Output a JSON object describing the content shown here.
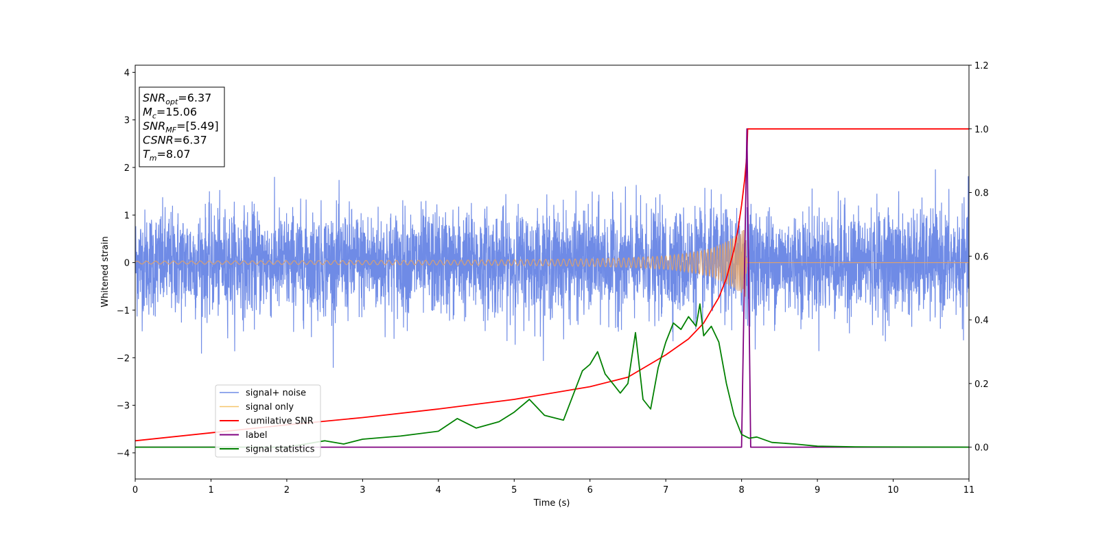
{
  "chart_data": {
    "type": "line",
    "title": "",
    "xlabel": "Time (s)",
    "ylabel": "Whitened strain",
    "y2label": "",
    "xlim": [
      0,
      11
    ],
    "ylim": [
      -4.55,
      4.15
    ],
    "y2lim": [
      -0.1,
      1.2
    ],
    "x_ticks": [
      0,
      1,
      2,
      3,
      4,
      5,
      6,
      7,
      8,
      9,
      10,
      11
    ],
    "y_ticks": [
      -4,
      -3,
      -2,
      -1,
      0,
      1,
      2,
      3,
      4
    ],
    "y2_ticks": [
      0.0,
      0.2,
      0.4,
      0.6,
      0.8,
      1.0,
      1.2
    ],
    "x_tick_labels": [
      "0",
      "1",
      "2",
      "3",
      "4",
      "5",
      "6",
      "7",
      "8",
      "9",
      "10",
      "11"
    ],
    "y_tick_labels": [
      "−4",
      "−3",
      "−2",
      "−1",
      "0",
      "1",
      "2",
      "3",
      "4"
    ],
    "y2_tick_labels": [
      "0.0",
      "0.2",
      "0.4",
      "0.6",
      "0.8",
      "1.0",
      "1.2"
    ],
    "grid": false,
    "legend_position": "lower-left",
    "annotation": {
      "lines": [
        {
          "symbol": "SNR",
          "sub": "opt",
          "value": "=6.37"
        },
        {
          "symbol": "M",
          "sub": "c",
          "value": "=15.06"
        },
        {
          "symbol": "SNR",
          "sub": "MF",
          "value": "=[5.49]"
        },
        {
          "symbol": "CSNR",
          "sub": "",
          "value": "=6.37"
        },
        {
          "symbol": "T",
          "sub": "m",
          "value": "=8.07"
        }
      ]
    },
    "series": [
      {
        "name": "signal+ noise",
        "axis": "left",
        "color": "#6f8be6",
        "style": "noise",
        "noise_std": 0.55,
        "noise_max_abs": 2.5
      },
      {
        "name": "signal only",
        "axis": "left",
        "color": "#f5c56a",
        "style": "chirp",
        "envelope": {
          "x": [
            0,
            1,
            2,
            3,
            4,
            5,
            6,
            6.5,
            7,
            7.3,
            7.6,
            7.8,
            7.95,
            8.05,
            8.07,
            8.1,
            11
          ],
          "y": [
            0.03,
            0.035,
            0.04,
            0.045,
            0.05,
            0.06,
            0.08,
            0.1,
            0.14,
            0.2,
            0.3,
            0.45,
            0.6,
            0.72,
            0.0,
            0.0,
            0.0
          ]
        }
      },
      {
        "name": "cumilative SNR",
        "axis": "right",
        "color": "#ff0000",
        "x": [
          0,
          1,
          2,
          3,
          4,
          5,
          6,
          6.5,
          7,
          7.3,
          7.5,
          7.7,
          7.8,
          7.9,
          7.95,
          8.0,
          8.04,
          8.07,
          8.08,
          11
        ],
        "y": [
          0.02,
          0.045,
          0.07,
          0.093,
          0.12,
          0.15,
          0.19,
          0.22,
          0.29,
          0.34,
          0.39,
          0.47,
          0.53,
          0.62,
          0.68,
          0.76,
          0.84,
          0.92,
          1.0,
          1.0
        ]
      },
      {
        "name": "label",
        "axis": "right",
        "color": "#800080",
        "x": [
          0,
          8.0,
          8.07,
          8.12,
          11
        ],
        "y": [
          0,
          0,
          1.0,
          0,
          0
        ]
      },
      {
        "name": "signal statistics",
        "axis": "right",
        "color": "#008000",
        "x": [
          0,
          1,
          2,
          2.5,
          2.75,
          3,
          3.5,
          4,
          4.25,
          4.5,
          4.8,
          5,
          5.2,
          5.4,
          5.65,
          5.9,
          6.0,
          6.1,
          6.2,
          6.3,
          6.4,
          6.5,
          6.6,
          6.7,
          6.8,
          6.9,
          7.0,
          7.1,
          7.2,
          7.3,
          7.4,
          7.45,
          7.5,
          7.6,
          7.7,
          7.8,
          7.9,
          8.0,
          8.1,
          8.2,
          8.4,
          8.7,
          9.0,
          9.5,
          11
        ],
        "y": [
          0.0,
          0.0,
          0.0,
          0.02,
          0.01,
          0.025,
          0.035,
          0.05,
          0.09,
          0.06,
          0.08,
          0.11,
          0.15,
          0.1,
          0.085,
          0.24,
          0.26,
          0.3,
          0.23,
          0.2,
          0.17,
          0.2,
          0.36,
          0.15,
          0.12,
          0.25,
          0.33,
          0.39,
          0.37,
          0.41,
          0.38,
          0.45,
          0.35,
          0.38,
          0.33,
          0.2,
          0.1,
          0.04,
          0.028,
          0.032,
          0.015,
          0.01,
          0.003,
          0.001,
          0.0
        ]
      }
    ]
  }
}
